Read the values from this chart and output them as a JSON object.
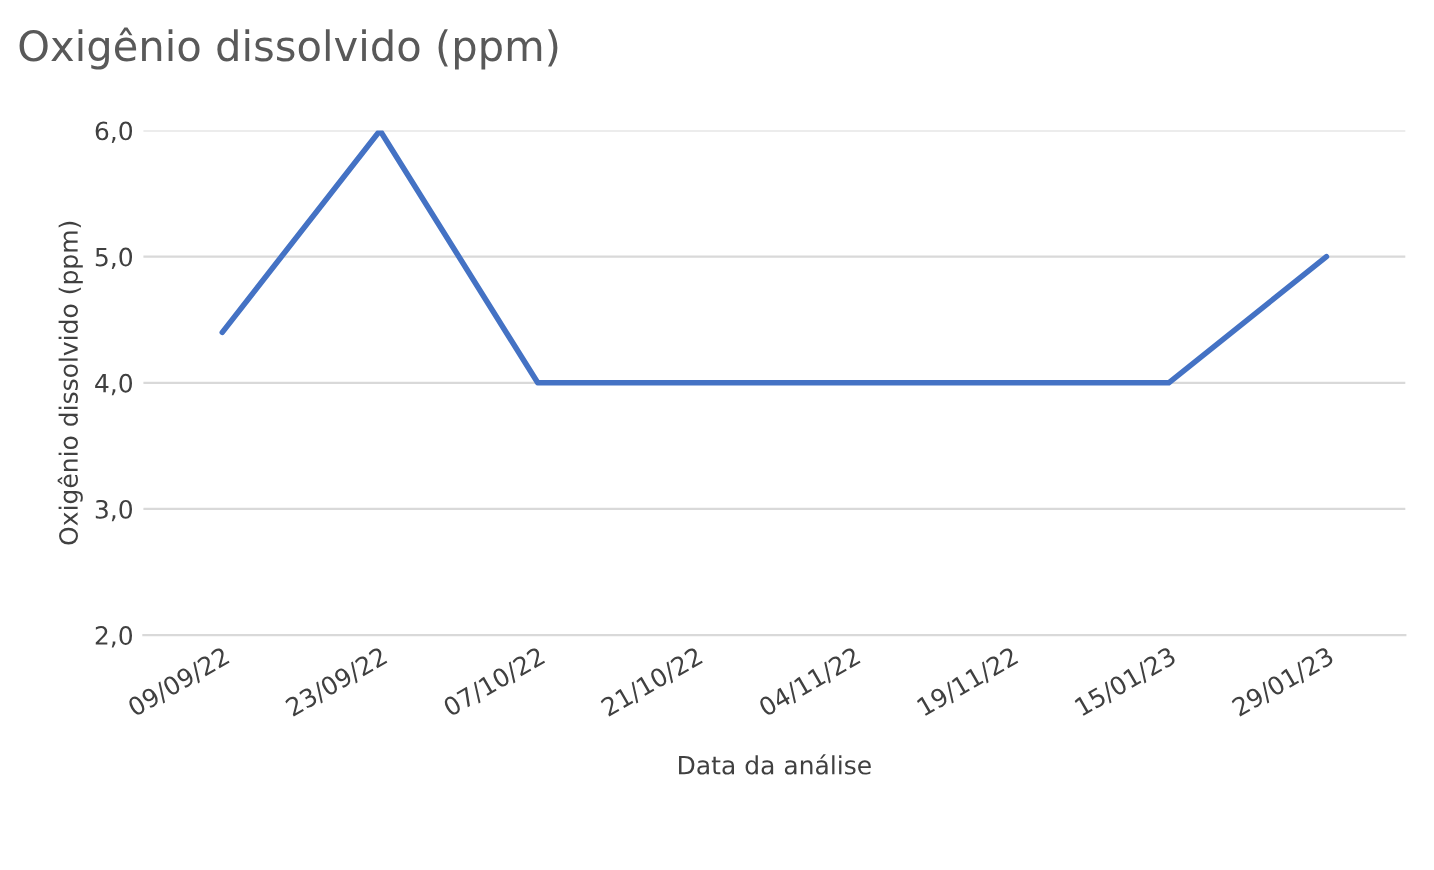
{
  "chart_data": {
    "type": "line",
    "title": "Oxigênio dissolvido (ppm)",
    "xlabel": "Data da análise",
    "ylabel": "Oxigênio dissolvido (ppm)",
    "categories": [
      "09/09/22",
      "23/09/22",
      "07/10/22",
      "21/10/22",
      "04/11/22",
      "19/11/22",
      "15/01/23",
      "29/01/23"
    ],
    "series": [
      {
        "color": "#4472c4",
        "values": [
          4.4,
          6.0,
          4.0,
          4.0,
          4.0,
          4.0,
          4.0,
          5.0
        ]
      }
    ],
    "ylim": [
      2,
      6
    ],
    "yticks": [
      {
        "value": 2,
        "label": "2,0"
      },
      {
        "value": 3,
        "label": "3,0"
      },
      {
        "value": 4,
        "label": "4,0"
      },
      {
        "value": 5,
        "label": "5,0"
      },
      {
        "value": 6,
        "label": "6,0"
      }
    ],
    "grid": "y",
    "legend": false,
    "marker": "none",
    "line_style": "solid"
  }
}
